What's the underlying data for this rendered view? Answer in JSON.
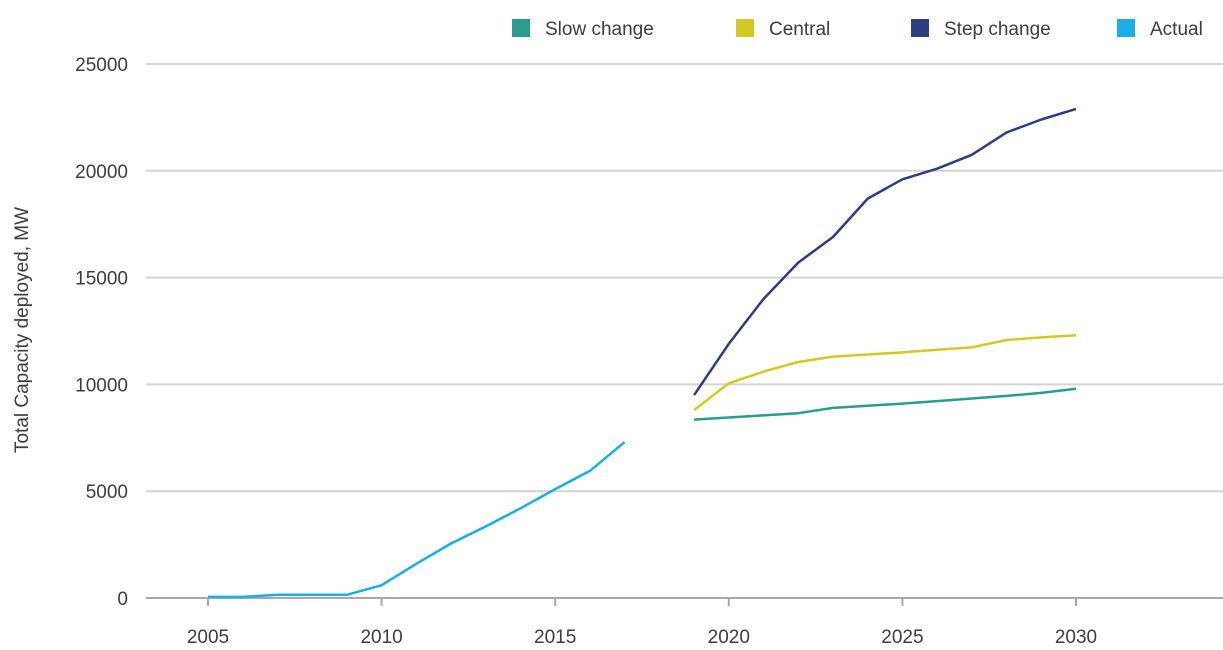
{
  "chart_data": {
    "type": "line",
    "title": "",
    "xlabel": "",
    "ylabel": "Total Capacity deployed, MW",
    "xlim": [
      2004,
      2034
    ],
    "ylim": [
      0,
      25000
    ],
    "x_ticks": [
      "2005",
      "2010",
      "2015",
      "2020",
      "2025",
      "2030"
    ],
    "y_ticks": [
      "0",
      "5000",
      "10000",
      "15000",
      "20000",
      "25000"
    ],
    "grid": "horizontal",
    "legend_position": "top-right",
    "series": [
      {
        "name": "Slow change",
        "color": "#2a9d8f",
        "x": [
          2019,
          2020,
          2021,
          2022,
          2023,
          2024,
          2025,
          2026,
          2027,
          2028,
          2029,
          2030
        ],
        "y": [
          8350,
          8450,
          8550,
          8650,
          8900,
          9000,
          9100,
          9220,
          9340,
          9460,
          9600,
          9800
        ]
      },
      {
        "name": "Central",
        "color": "#d4c826",
        "x": [
          2019,
          2020,
          2021,
          2022,
          2023,
          2024,
          2025,
          2026,
          2027,
          2028,
          2029,
          2030
        ],
        "y": [
          8800,
          10050,
          10600,
          11050,
          11300,
          11400,
          11500,
          11620,
          11730,
          12080,
          12200,
          12300
        ]
      },
      {
        "name": "Step change",
        "color": "#2c3e82",
        "x": [
          2019,
          2020,
          2021,
          2022,
          2023,
          2024,
          2025,
          2026,
          2027,
          2028,
          2029,
          2030
        ],
        "y": [
          9500,
          11900,
          14000,
          15700,
          16900,
          18700,
          19600,
          20100,
          20750,
          21800,
          22400,
          22900
        ]
      },
      {
        "name": "Actual",
        "color": "#1aaee5",
        "x": [
          2005,
          2006,
          2007,
          2008,
          2009,
          2010,
          2011,
          2012,
          2013,
          2014,
          2015,
          2016,
          2017
        ],
        "y": [
          50,
          50,
          150,
          150,
          150,
          600,
          1600,
          2550,
          3350,
          4200,
          5100,
          5950,
          7300
        ]
      }
    ]
  }
}
